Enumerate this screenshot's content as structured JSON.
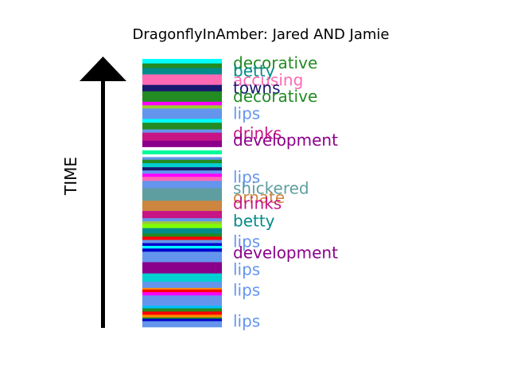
{
  "chart_data": {
    "type": "stacked-band",
    "title": "DragonflyInAmber: Jared AND Jamie",
    "axis_label": "TIME",
    "y_range": [
      0,
      1
    ],
    "bands": [
      {
        "y0": 0.983,
        "y1": 1.0,
        "color": "#00ffff"
      },
      {
        "y0": 0.966,
        "y1": 0.983,
        "color": "#228b22"
      },
      {
        "y0": 0.942,
        "y1": 0.966,
        "color": "#008b8b"
      },
      {
        "y0": 0.903,
        "y1": 0.942,
        "color": "#ff69b4"
      },
      {
        "y0": 0.879,
        "y1": 0.903,
        "color": "#191970"
      },
      {
        "y0": 0.84,
        "y1": 0.879,
        "color": "#228b22"
      },
      {
        "y0": 0.827,
        "y1": 0.84,
        "color": "#ff00ff"
      },
      {
        "y0": 0.815,
        "y1": 0.827,
        "color": "#9acd32"
      },
      {
        "y0": 0.796,
        "y1": 0.815,
        "color": "#6495ed"
      },
      {
        "y0": 0.776,
        "y1": 0.796,
        "color": "#6495ed"
      },
      {
        "y0": 0.762,
        "y1": 0.776,
        "color": "#00ffff"
      },
      {
        "y0": 0.752,
        "y1": 0.762,
        "color": "#228b22"
      },
      {
        "y0": 0.737,
        "y1": 0.752,
        "color": "#228b22"
      },
      {
        "y0": 0.725,
        "y1": 0.737,
        "color": "#6495ed"
      },
      {
        "y0": 0.695,
        "y1": 0.725,
        "color": "#c71585"
      },
      {
        "y0": 0.671,
        "y1": 0.695,
        "color": "#8b008b"
      },
      {
        "y0": 0.659,
        "y1": 0.671,
        "color": "#ffffff"
      },
      {
        "y0": 0.644,
        "y1": 0.659,
        "color": "#00fa9a"
      },
      {
        "y0": 0.634,
        "y1": 0.644,
        "color": "#ffffff"
      },
      {
        "y0": 0.624,
        "y1": 0.634,
        "color": "#6495ed"
      },
      {
        "y0": 0.611,
        "y1": 0.624,
        "color": "#228b22"
      },
      {
        "y0": 0.596,
        "y1": 0.611,
        "color": "#00ced1"
      },
      {
        "y0": 0.584,
        "y1": 0.596,
        "color": "#191970"
      },
      {
        "y0": 0.572,
        "y1": 0.584,
        "color": "#6495ed"
      },
      {
        "y0": 0.56,
        "y1": 0.572,
        "color": "#ff00ff"
      },
      {
        "y0": 0.545,
        "y1": 0.56,
        "color": "#ff69b4"
      },
      {
        "y0": 0.533,
        "y1": 0.545,
        "color": "#6495ed"
      },
      {
        "y0": 0.518,
        "y1": 0.533,
        "color": "#6495ed"
      },
      {
        "y0": 0.506,
        "y1": 0.518,
        "color": "#5f9ea0"
      },
      {
        "y0": 0.496,
        "y1": 0.506,
        "color": "#5f9ea0"
      },
      {
        "y0": 0.486,
        "y1": 0.496,
        "color": "#5f9ea0"
      },
      {
        "y0": 0.471,
        "y1": 0.486,
        "color": "#5f9ea0"
      },
      {
        "y0": 0.433,
        "y1": 0.471,
        "color": "#cd853f"
      },
      {
        "y0": 0.418,
        "y1": 0.433,
        "color": "#c71585"
      },
      {
        "y0": 0.406,
        "y1": 0.418,
        "color": "#c71585"
      },
      {
        "y0": 0.394,
        "y1": 0.406,
        "color": "#6495ed"
      },
      {
        "y0": 0.384,
        "y1": 0.394,
        "color": "#9acd32"
      },
      {
        "y0": 0.369,
        "y1": 0.384,
        "color": "#7fff00"
      },
      {
        "y0": 0.349,
        "y1": 0.369,
        "color": "#008b8b"
      },
      {
        "y0": 0.337,
        "y1": 0.349,
        "color": "#228b22"
      },
      {
        "y0": 0.325,
        "y1": 0.337,
        "color": "#ff0000"
      },
      {
        "y0": 0.313,
        "y1": 0.325,
        "color": "#6495ed"
      },
      {
        "y0": 0.303,
        "y1": 0.313,
        "color": "#0000cd"
      },
      {
        "y0": 0.293,
        "y1": 0.303,
        "color": "#00ffff"
      },
      {
        "y0": 0.281,
        "y1": 0.293,
        "color": "#0000cd"
      },
      {
        "y0": 0.27,
        "y1": 0.281,
        "color": "#6495ed"
      },
      {
        "y0": 0.254,
        "y1": 0.27,
        "color": "#6495ed"
      },
      {
        "y0": 0.242,
        "y1": 0.254,
        "color": "#6495ed"
      },
      {
        "y0": 0.23,
        "y1": 0.242,
        "color": "#8b008b"
      },
      {
        "y0": 0.2,
        "y1": 0.23,
        "color": "#8b008b"
      },
      {
        "y0": 0.181,
        "y1": 0.2,
        "color": "#00ced1"
      },
      {
        "y0": 0.169,
        "y1": 0.181,
        "color": "#00ced1"
      },
      {
        "y0": 0.157,
        "y1": 0.169,
        "color": "#6495ed"
      },
      {
        "y0": 0.146,
        "y1": 0.157,
        "color": "#6495ed"
      },
      {
        "y0": 0.14,
        "y1": 0.146,
        "color": "#ff8c00"
      },
      {
        "y0": 0.13,
        "y1": 0.14,
        "color": "#ff0000"
      },
      {
        "y0": 0.118,
        "y1": 0.13,
        "color": "#ff00ff"
      },
      {
        "y0": 0.101,
        "y1": 0.118,
        "color": "#6495ed"
      },
      {
        "y0": 0.089,
        "y1": 0.101,
        "color": "#6495ed"
      },
      {
        "y0": 0.08,
        "y1": 0.089,
        "color": "#6495ed"
      },
      {
        "y0": 0.07,
        "y1": 0.08,
        "color": "#00bfff"
      },
      {
        "y0": 0.058,
        "y1": 0.07,
        "color": "#228b22"
      },
      {
        "y0": 0.046,
        "y1": 0.058,
        "color": "#ff0000"
      },
      {
        "y0": 0.036,
        "y1": 0.046,
        "color": "#ff8c00"
      },
      {
        "y0": 0.031,
        "y1": 0.036,
        "color": "#228b22"
      },
      {
        "y0": 0.022,
        "y1": 0.031,
        "color": "#0000cd"
      },
      {
        "y0": 0.0,
        "y1": 0.022,
        "color": "#6495ed"
      }
    ],
    "labels": [
      {
        "text": "decorative",
        "y": 0.985,
        "color": "#228b22"
      },
      {
        "text": "betty",
        "y": 0.955,
        "color": "#008b8b"
      },
      {
        "text": "accusing",
        "y": 0.922,
        "color": "#ff69b4"
      },
      {
        "text": "towns",
        "y": 0.891,
        "color": "#191970"
      },
      {
        "text": "decorative",
        "y": 0.86,
        "color": "#228b22"
      },
      {
        "text": "lips",
        "y": 0.796,
        "color": "#6495ed"
      },
      {
        "text": "drinks",
        "y": 0.723,
        "color": "#c71585"
      },
      {
        "text": "development",
        "y": 0.698,
        "color": "#8b008b"
      },
      {
        "text": "lips",
        "y": 0.56,
        "color": "#6495ed"
      },
      {
        "text": "shickered",
        "y": 0.518,
        "color": "#5f9ea0"
      },
      {
        "text": "ornate",
        "y": 0.484,
        "color": "#cd853f"
      },
      {
        "text": "drinks",
        "y": 0.461,
        "color": "#c71585"
      },
      {
        "text": "betty",
        "y": 0.396,
        "color": "#008b8b"
      },
      {
        "text": "lips",
        "y": 0.319,
        "color": "#6495ed"
      },
      {
        "text": "development",
        "y": 0.278,
        "color": "#8b008b"
      },
      {
        "text": "lips",
        "y": 0.215,
        "color": "#6495ed"
      },
      {
        "text": "lips",
        "y": 0.138,
        "color": "#6495ed"
      },
      {
        "text": "lips",
        "y": 0.022,
        "color": "#6495ed"
      }
    ]
  }
}
